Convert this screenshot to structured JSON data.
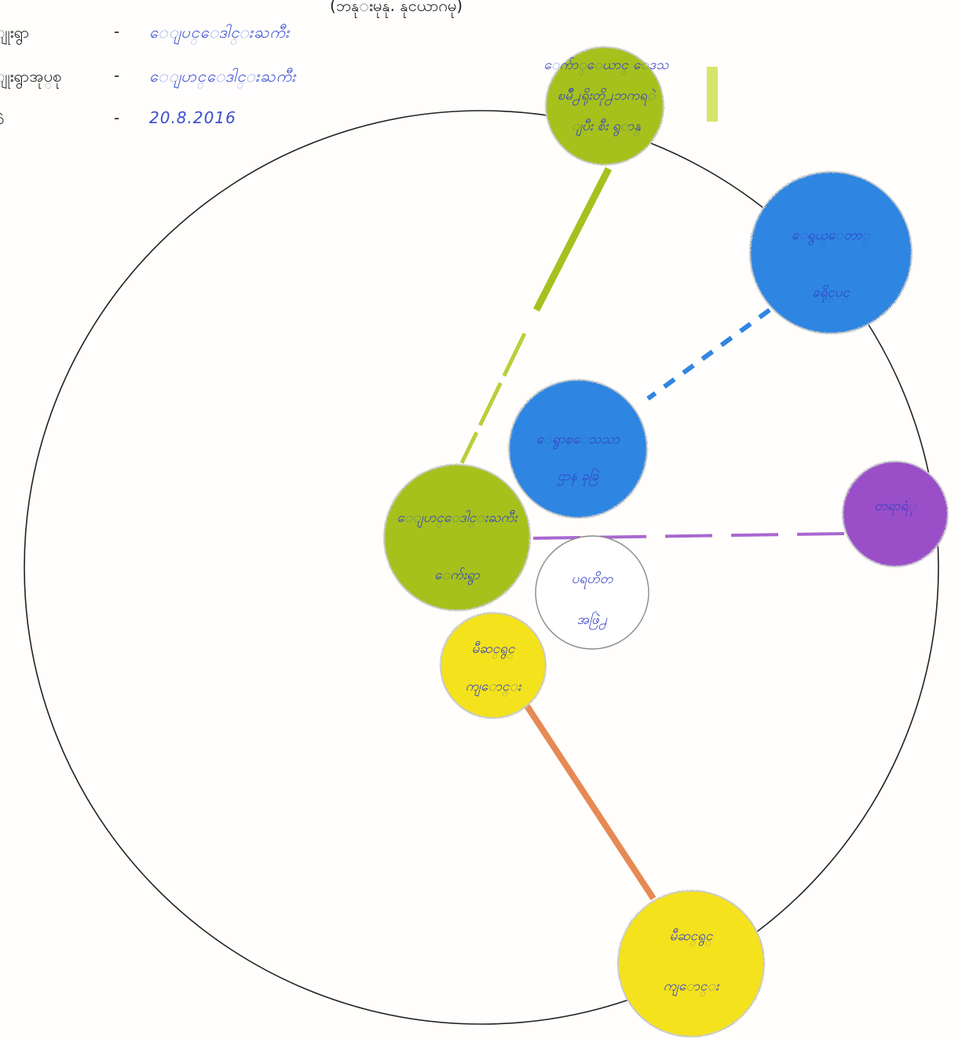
{
  "header": {
    "title": "(ဘ​နု​းမုနု. နုငယာဂမု)"
  },
  "meta": [
    {
      "label": "ျုး​ရွာ",
      "value": "ေ​ျ​ပင္​ေ​ဒါ​င္း​ႀ​ကီး"
    },
    {
      "label": "ျုး​ရွာ​အုပ္​စု",
      "value": "ေ​ျ​ပာ​င္​ေ​ဒါ​င္း​ႀ​ကီး"
    },
    {
      "label": "စဲ",
      "value": "20.8.2016"
    }
  ],
  "diagram": {
    "nodes": [
      {
        "id": "township-education",
        "lines": [
          "ေက်ာ္​ေ​ယာ​င္ ေ​ဒ​သ",
          "ၿ​မိဳ႕​ရိုး​တို႕​ဘ​က​ရ​ဲ",
          "ျ​ပီး ​စီး​ ရွ​ာ​န္"
        ],
        "color": "green"
      },
      {
        "id": "health-dept",
        "lines": [
          "ေ​ရွ​ယ္​ေ​တာ္",
          "ခ​ရိုင္​ပင္"
        ],
        "color": "blue"
      },
      {
        "id": "rural-health-center",
        "lines": [
          "ေ​ရွာ​စ္​ေ​သ​သာ",
          "ဌာ​န​ ​ခု​ခြဲ"
        ],
        "color": "blue"
      },
      {
        "id": "village",
        "lines": [
          "ေ​ျ​ပာ​င္​ေ​ဒါ​င္း​ႀ​ကီး",
          "ေက်း​ရွာ"
        ],
        "color": "green"
      },
      {
        "id": "ngo",
        "lines": [
          "ပ​ရ​ဟိ​တ",
          "အ​ဖြဲ႕"
        ],
        "color": "white"
      },
      {
        "id": "market",
        "lines": [
          "တ​ရာ​ရံု"
        ],
        "color": "purple"
      },
      {
        "id": "school-small",
        "lines": [
          "မီ​ဆင္​ရွ​င္​",
          "ကျ​ောင္း"
        ],
        "color": "yellow"
      },
      {
        "id": "school-large",
        "lines": [
          "မီ​ဆင္​ရွ​င္​",
          "ကျ​ောင္း"
        ],
        "color": "yellow"
      }
    ],
    "colors": {
      "green": "#a6c11f",
      "blue": "#2f86e2",
      "purple": "#9a4fc9",
      "yellow": "#f4e21a",
      "white": "#ffffff",
      "orange_line": "#e68a55",
      "text": "#3340c4",
      "outline": "#222222"
    }
  }
}
